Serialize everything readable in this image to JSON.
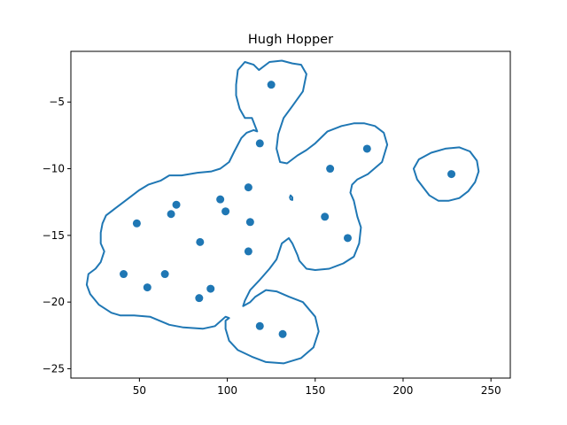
{
  "chart_data": {
    "type": "scatter",
    "title": "Hugh Hopper",
    "xlabel": "",
    "ylabel": "",
    "xlim": [
      11,
      261
    ],
    "ylim": [
      -25.7,
      -1.2
    ],
    "grid": false,
    "xticks": [
      50,
      100,
      150,
      200,
      250
    ],
    "xtick_labels": [
      "50",
      "100",
      "150",
      "200",
      "250"
    ],
    "yticks": [
      -5,
      -10,
      -15,
      -20,
      -25
    ],
    "ytick_labels": [
      "−5",
      "−10",
      "−15",
      "−20",
      "−25"
    ],
    "color": "#1f77b4",
    "points": [
      {
        "x": 125.0,
        "y": -3.7
      },
      {
        "x": 118.5,
        "y": -8.1
      },
      {
        "x": 179.5,
        "y": -8.5
      },
      {
        "x": 158.5,
        "y": -10.0
      },
      {
        "x": 227.5,
        "y": -10.4
      },
      {
        "x": 112.0,
        "y": -11.4
      },
      {
        "x": 96.0,
        "y": -12.3
      },
      {
        "x": 71.0,
        "y": -12.7
      },
      {
        "x": 99.0,
        "y": -13.2
      },
      {
        "x": 68.0,
        "y": -13.4
      },
      {
        "x": 155.5,
        "y": -13.6
      },
      {
        "x": 48.5,
        "y": -14.1
      },
      {
        "x": 113.0,
        "y": -14.0
      },
      {
        "x": 168.5,
        "y": -15.2
      },
      {
        "x": 84.5,
        "y": -15.5
      },
      {
        "x": 112.0,
        "y": -16.2
      },
      {
        "x": 41.0,
        "y": -17.9
      },
      {
        "x": 64.5,
        "y": -17.9
      },
      {
        "x": 54.5,
        "y": -18.9
      },
      {
        "x": 90.5,
        "y": -19.0
      },
      {
        "x": 84.0,
        "y": -19.7
      },
      {
        "x": 118.5,
        "y": -21.8
      },
      {
        "x": 131.5,
        "y": -22.4
      }
    ],
    "contours": [
      [
        [
          117,
          -7.2
        ],
        [
          114,
          -6.2
        ],
        [
          110,
          -6.2
        ],
        [
          107,
          -5.5
        ],
        [
          105,
          -4.5
        ],
        [
          105,
          -3.7
        ],
        [
          106,
          -2.6
        ],
        [
          110,
          -2.0
        ],
        [
          115,
          -2.2
        ],
        [
          118,
          -2.6
        ],
        [
          124,
          -2.0
        ],
        [
          131,
          -1.9
        ],
        [
          137,
          -2.1
        ],
        [
          142,
          -2.2
        ],
        [
          145,
          -2.9
        ],
        [
          143,
          -4.2
        ],
        [
          137,
          -5.3
        ],
        [
          132,
          -6.2
        ],
        [
          129,
          -7.4
        ],
        [
          128,
          -8.5
        ],
        [
          130,
          -9.5
        ],
        [
          134,
          -9.6
        ],
        [
          140,
          -9.0
        ],
        [
          145,
          -8.6
        ],
        [
          150,
          -8.1
        ],
        [
          157,
          -7.2
        ],
        [
          165,
          -6.8
        ],
        [
          172,
          -6.6
        ],
        [
          178,
          -6.6
        ],
        [
          184,
          -6.8
        ],
        [
          189,
          -7.3
        ],
        [
          191,
          -8.2
        ],
        [
          188,
          -9.5
        ],
        [
          180,
          -10.4
        ],
        [
          174,
          -10.8
        ],
        [
          171,
          -11.2
        ],
        [
          170,
          -11.8
        ],
        [
          172,
          -12.4
        ],
        [
          174,
          -13.6
        ],
        [
          176,
          -14.4
        ],
        [
          175,
          -15.6
        ],
        [
          172,
          -16.6
        ],
        [
          166,
          -17.1
        ],
        [
          158,
          -17.5
        ],
        [
          150,
          -17.6
        ],
        [
          145,
          -17.5
        ],
        [
          141,
          -16.9
        ],
        [
          140,
          -16.5
        ],
        [
          137,
          -15.6
        ],
        [
          135,
          -15.2
        ],
        [
          131,
          -15.6
        ],
        [
          128,
          -16.8
        ],
        [
          124,
          -17.5
        ],
        [
          118,
          -18.4
        ],
        [
          113,
          -19.1
        ],
        [
          110,
          -19.9
        ],
        [
          109,
          -20.3
        ],
        [
          113,
          -20.0
        ],
        [
          116,
          -19.6
        ],
        [
          122,
          -19.1
        ],
        [
          128,
          -19.2
        ],
        [
          135,
          -19.6
        ],
        [
          143,
          -20.0
        ],
        [
          150,
          -21.1
        ],
        [
          152,
          -22.2
        ],
        [
          149,
          -23.4
        ],
        [
          142,
          -24.2
        ],
        [
          132,
          -24.6
        ],
        [
          122,
          -24.5
        ],
        [
          114,
          -24.1
        ],
        [
          106,
          -23.6
        ],
        [
          101,
          -22.9
        ],
        [
          99,
          -22.0
        ],
        [
          99,
          -21.4
        ],
        [
          101,
          -21.2
        ],
        [
          99,
          -21.1
        ],
        [
          93,
          -21.8
        ],
        [
          86,
          -22.0
        ],
        [
          75,
          -21.9
        ],
        [
          67,
          -21.7
        ],
        [
          56,
          -21.1
        ],
        [
          47,
          -21.0
        ],
        [
          39,
          -21.0
        ],
        [
          34,
          -20.8
        ],
        [
          27,
          -20.2
        ],
        [
          22,
          -19.4
        ],
        [
          20,
          -18.7
        ],
        [
          21,
          -17.9
        ],
        [
          25,
          -17.5
        ],
        [
          28,
          -17.0
        ],
        [
          29,
          -16.6
        ],
        [
          30,
          -16.2
        ],
        [
          28,
          -15.6
        ],
        [
          28,
          -14.8
        ],
        [
          29,
          -14.1
        ],
        [
          31,
          -13.5
        ],
        [
          36,
          -13.0
        ],
        [
          42,
          -12.4
        ],
        [
          50,
          -11.6
        ],
        [
          55,
          -11.2
        ],
        [
          62,
          -10.9
        ],
        [
          67,
          -10.5
        ],
        [
          74,
          -10.5
        ],
        [
          83,
          -10.3
        ],
        [
          91,
          -10.2
        ],
        [
          96,
          -10.0
        ],
        [
          101,
          -9.5
        ],
        [
          104,
          -8.7
        ],
        [
          106,
          -8.2
        ],
        [
          108,
          -7.7
        ],
        [
          111,
          -7.3
        ],
        [
          115,
          -7.1
        ],
        [
          117,
          -7.2
        ]
      ],
      [
        [
          136,
          -12.0
        ],
        [
          137,
          -12.15
        ],
        [
          137,
          -12.35
        ],
        [
          136,
          -12.3
        ],
        [
          135.6,
          -12.15
        ],
        [
          136,
          -12.0
        ]
      ],
      [
        [
          212,
          -11.5
        ],
        [
          208,
          -10.8
        ],
        [
          206,
          -10.0
        ],
        [
          209,
          -9.3
        ],
        [
          216,
          -8.8
        ],
        [
          224,
          -8.5
        ],
        [
          232,
          -8.4
        ],
        [
          238,
          -8.7
        ],
        [
          242,
          -9.4
        ],
        [
          243,
          -10.2
        ],
        [
          241,
          -11.0
        ],
        [
          237,
          -11.7
        ],
        [
          232,
          -12.2
        ],
        [
          226,
          -12.4
        ],
        [
          220,
          -12.4
        ],
        [
          215,
          -12.0
        ],
        [
          212,
          -11.5
        ]
      ]
    ]
  }
}
